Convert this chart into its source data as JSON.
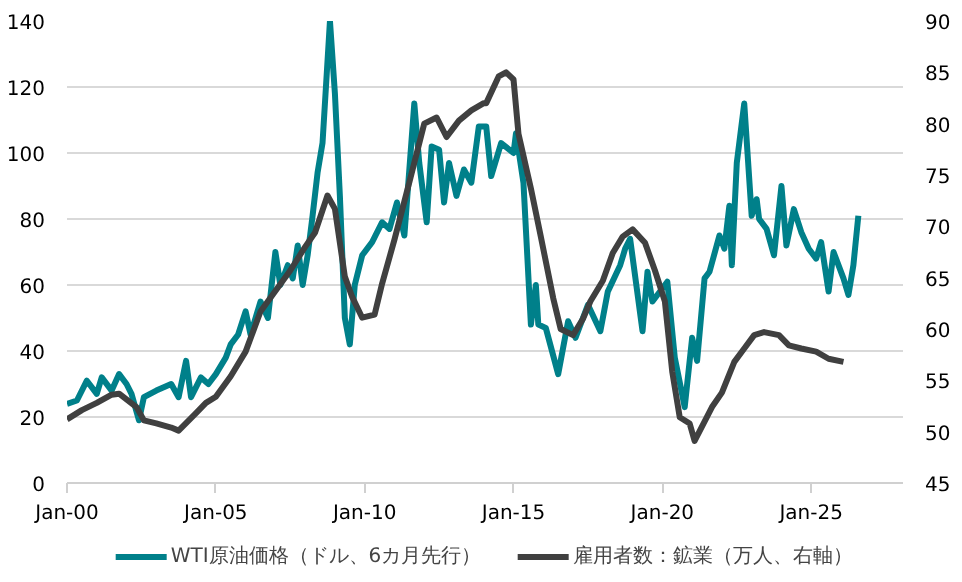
{
  "chart_data": {
    "type": "line",
    "x": [
      "2000-01",
      "2000-07",
      "2001-01",
      "2001-07",
      "2001-10",
      "2002-05",
      "2002-08",
      "2003-01",
      "2003-07",
      "2003-10",
      "2004-05",
      "2004-09",
      "2005-01",
      "2005-07",
      "2006-01",
      "2006-07",
      "2007-01",
      "2007-07",
      "2008-01",
      "2008-05",
      "2008-10",
      "2009-01",
      "2009-05",
      "2009-08",
      "2009-12",
      "2010-05",
      "2010-08",
      "2011-01",
      "2011-07",
      "2012-01",
      "2012-06",
      "2012-10",
      "2013-03",
      "2013-08",
      "2014-01",
      "2014-02",
      "2014-07",
      "2014-10",
      "2015-01",
      "2015-03",
      "2015-08",
      "2015-12",
      "2016-05",
      "2016-08",
      "2017-01",
      "2017-05",
      "2017-08",
      "2018-01",
      "2018-05",
      "2018-09",
      "2019-01",
      "2019-06",
      "2019-10",
      "2020-02",
      "2020-05",
      "2020-08",
      "2020-12",
      "2021-02",
      "2021-09",
      "2022-01",
      "2022-06",
      "2022-10",
      "2023-02",
      "2023-06",
      "2023-12",
      "2024-04",
      "2024-09",
      "2025-03",
      "2025-08",
      "2026-02"
    ],
    "series": [
      {
        "name": "WTI原油価格（ドル、6カ月先行）",
        "color": "#00808a",
        "x": [
          "2000-01",
          "2000-05",
          "2000-09",
          "2001-01",
          "2001-03",
          "2001-07",
          "2001-10",
          "2002-01",
          "2002-03",
          "2002-06",
          "2002-08",
          "2003-01",
          "2003-07",
          "2003-10",
          "2004-01",
          "2004-03",
          "2004-07",
          "2004-10",
          "2005-01",
          "2005-05",
          "2005-07",
          "2005-10",
          "2006-01",
          "2006-03",
          "2006-07",
          "2006-10",
          "2007-01",
          "2007-03",
          "2007-06",
          "2007-08",
          "2007-10",
          "2007-12",
          "2008-02",
          "2008-04",
          "2008-06",
          "2008-08",
          "2008-11",
          "2009-01",
          "2009-03",
          "2009-05",
          "2009-07",
          "2009-09",
          "2009-12",
          "2010-04",
          "2010-08",
          "2010-11",
          "2011-02",
          "2011-05",
          "2011-09",
          "2011-11",
          "2012-02",
          "2012-04",
          "2012-07",
          "2012-09",
          "2012-11",
          "2013-02",
          "2013-05",
          "2013-08",
          "2013-11",
          "2014-02",
          "2014-04",
          "2014-08",
          "2015-01",
          "2015-02",
          "2015-05",
          "2015-08",
          "2015-10",
          "2015-11",
          "2016-02",
          "2016-07",
          "2016-11",
          "2017-02",
          "2017-07",
          "2017-12",
          "2018-03",
          "2018-08",
          "2018-10",
          "2018-12",
          "2019-05",
          "2019-07",
          "2019-09",
          "2020-03",
          "2020-06",
          "2020-10",
          "2021-01",
          "2021-03",
          "2021-06",
          "2021-08",
          "2021-12",
          "2022-02",
          "2022-04",
          "2022-05",
          "2022-07",
          "2022-10",
          "2023-01",
          "2023-03",
          "2023-04",
          "2023-07",
          "2023-10",
          "2024-01",
          "2024-03",
          "2024-06",
          "2024-09",
          "2024-12",
          "2025-03",
          "2025-05",
          "2025-08",
          "2025-10",
          "2026-02",
          "2026-04",
          "2026-06",
          "2026-08"
        ],
        "values": [
          24,
          25,
          31,
          27,
          32,
          28,
          33,
          30,
          27,
          19,
          26,
          28,
          30,
          26,
          37,
          26,
          32,
          30,
          33,
          38,
          42,
          45,
          52,
          45,
          55,
          50,
          70,
          60,
          66,
          62,
          72,
          60,
          69,
          81,
          94,
          103,
          140,
          118,
          87,
          50,
          42,
          60,
          69,
          73,
          79,
          77,
          85,
          75,
          115,
          97,
          79,
          102,
          101,
          85,
          97,
          87,
          95,
          91,
          108,
          108,
          93,
          103,
          100,
          106,
          91,
          48,
          60,
          48,
          47,
          33,
          49,
          44,
          54,
          46,
          58,
          66,
          71,
          74,
          46,
          64,
          55,
          61,
          38,
          23,
          44,
          37,
          62,
          64,
          75,
          71,
          84,
          66,
          97,
          115,
          81,
          86,
          80,
          77,
          69,
          90,
          72,
          83,
          76,
          71,
          68,
          73,
          58,
          70,
          62,
          57,
          66,
          81
        ]
      },
      {
        "name": "雇用者数：鉱業（万人、右軸）",
        "color": "#404040",
        "axis": "y2",
        "values": [
          51.2,
          52.1,
          52.8,
          53.6,
          53.7,
          52.4,
          51.1,
          50.8,
          50.4,
          50.1,
          51.8,
          52.8,
          53.4,
          55.4,
          57.8,
          61.7,
          63.7,
          65.7,
          68.0,
          69.4,
          73.0,
          71.7,
          65.1,
          63.1,
          61.1,
          61.4,
          64.4,
          68.7,
          74.3,
          80.0,
          80.6,
          78.7,
          80.3,
          81.3,
          82.0,
          82.0,
          84.6,
          85.0,
          84.3,
          79.0,
          73.7,
          69.0,
          63.0,
          60.0,
          59.4,
          61.0,
          62.7,
          64.7,
          67.4,
          69.0,
          69.7,
          68.4,
          65.7,
          62.7,
          55.8,
          51.4,
          50.8,
          49.1,
          52.4,
          53.8,
          56.8,
          58.1,
          59.4,
          59.7,
          59.4,
          58.4,
          58.1,
          57.8,
          57.1,
          56.8
        ]
      }
    ],
    "xlim": [
      "2000-01",
      "2028-02"
    ],
    "xticks": [
      {
        "value": "2000-01",
        "label": "Jan-00"
      },
      {
        "value": "2005-01",
        "label": "Jan-05"
      },
      {
        "value": "2010-01",
        "label": "Jan-10"
      },
      {
        "value": "2015-01",
        "label": "Jan-15"
      },
      {
        "value": "2020-01",
        "label": "Jan-20"
      },
      {
        "value": "2025-01",
        "label": "Jan-25"
      }
    ],
    "ylim": [
      0,
      140
    ],
    "yticks": [
      0,
      20,
      40,
      60,
      80,
      100,
      120,
      140
    ],
    "y2lim": [
      45,
      90
    ],
    "y2ticks": [
      45,
      50,
      55,
      60,
      65,
      70,
      75,
      80,
      85,
      90
    ],
    "grid": "y",
    "legend": "bottom",
    "line_style": "solid"
  }
}
